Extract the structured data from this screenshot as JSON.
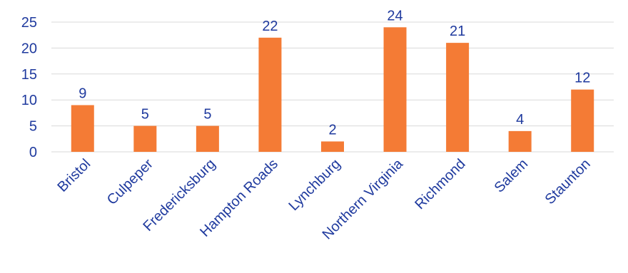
{
  "chart_data": {
    "type": "bar",
    "title": "",
    "xlabel": "",
    "ylabel": "",
    "categories": [
      "Bristol",
      "Culpeper",
      "Fredericksburg",
      "Hampton Roads",
      "Lynchburg",
      "Northern Virginia",
      "Richmond",
      "Salem",
      "Staunton"
    ],
    "values": [
      9,
      5,
      5,
      22,
      2,
      24,
      21,
      4,
      12
    ],
    "ylim": [
      0,
      25
    ],
    "yticks": [
      0,
      5,
      10,
      15,
      20,
      25
    ],
    "grid": true,
    "legend": "none"
  },
  "colors": {
    "bar": "#F47B35",
    "text": "#1F3A9E",
    "grid": "#D9D9D9"
  }
}
